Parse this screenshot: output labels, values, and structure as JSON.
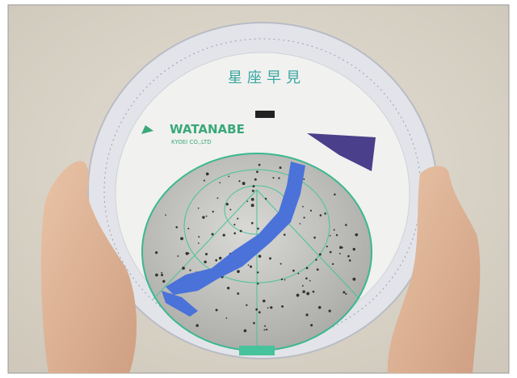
{
  "image": {
    "title": "星座早見",
    "brand": "WATANABE",
    "company": "KYOEI CO.,LTD"
  }
}
